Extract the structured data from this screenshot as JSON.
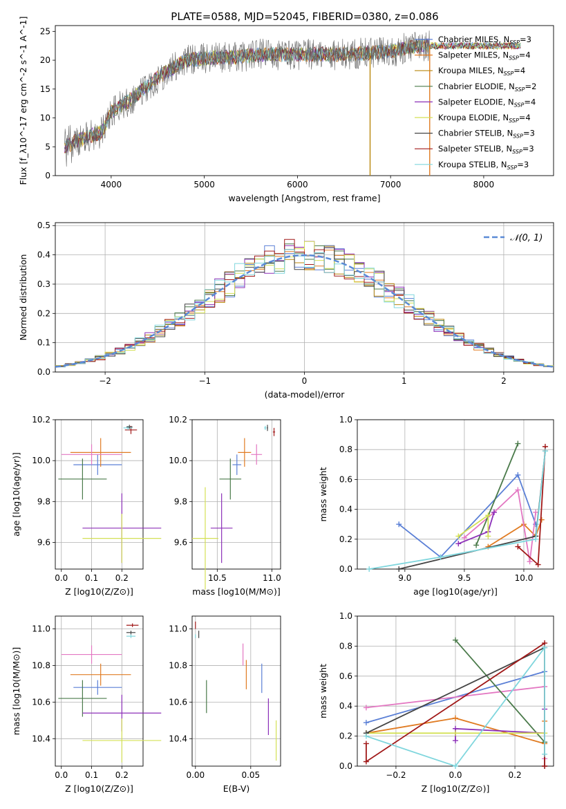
{
  "figure_title": "PLATE=0588, MJD=52045, FIBERID=0380, z=0.086",
  "colors": {
    "Chabrier MILES": "#5a7fd6",
    "Salpeter MILES": "#e07b22",
    "Kroupa MILES": "#b8860b",
    "Chabrier ELODIE": "#4a7a4a",
    "Salpeter ELODIE": "#8b2fb8",
    "Kroupa ELODIE": "#d4e055",
    "Chabrier STELIB": "#444444",
    "Salpeter STELIB": "#a01818",
    "Kroupa STELIB": "#7fd6dd",
    "Salpeter MILES 2": "#e377c2",
    "normal_curve": "#5a8ad6"
  },
  "chart_data": [
    {
      "id": "spectrum",
      "type": "line",
      "title": "PLATE=0588, MJD=52045, FIBERID=0380, z=0.086",
      "xlabel": "wavelength [Angstrom, rest frame]",
      "ylabel": "Flux [f_λ10^-17 erg cm^-2 s^-1 A^-1]",
      "xlim": [
        3400,
        8750
      ],
      "ylim": [
        0,
        26
      ],
      "xticks": [
        "4000",
        "5000",
        "6000",
        "7000",
        "8000"
      ],
      "yticks": [
        "0",
        "5",
        "10",
        "15",
        "20",
        "25"
      ],
      "legend_position": "right",
      "legend": [
        "Chabrier MILES, N_SSP=3",
        "Salpeter MILES, N_SSP=4",
        "Kroupa MILES, N_SSP=4",
        "Chabrier ELODIE, N_SSP=2",
        "Salpeter ELODIE, N_SSP=4",
        "Kroupa ELODIE, N_SSP=4",
        "Chabrier STELIB, N_SSP=3",
        "Salpeter STELIB, N_SSP=3",
        "Kroupa STELIB, N_SSP=3"
      ],
      "data_trend_x": [
        3500,
        3700,
        3900,
        4000,
        4200,
        4500,
        4800,
        5100,
        5300,
        5600,
        6000,
        6500,
        7000,
        7300,
        7400
      ],
      "data_trend_y": [
        5,
        6.5,
        7.5,
        11,
        13,
        17,
        20,
        20.5,
        20.5,
        21,
        21,
        21,
        21.5,
        22.5,
        22.5
      ],
      "model_end_x": 8400,
      "model_end_y": 22.5,
      "drops": [
        {
          "x": 6780,
          "y": 0
        },
        {
          "x": 7420,
          "y": 0
        }
      ]
    },
    {
      "id": "residual_hist",
      "type": "line",
      "xlabel": "(data-model)/error",
      "ylabel": "Normed distribution",
      "xlim": [
        -2.5,
        2.5
      ],
      "ylim": [
        0,
        0.51
      ],
      "xticks": [
        "−2",
        "−1",
        "0",
        "1",
        "2"
      ],
      "yticks": [
        "0.0",
        "0.1",
        "0.2",
        "0.3",
        "0.4",
        "0.5"
      ],
      "legend": [
        "𝒩(0, 1)"
      ],
      "legend_position": "top-right",
      "normal": {
        "mu": 0,
        "sigma": 1
      },
      "bin_width": 0.1
    },
    {
      "id": "age_vs_Z",
      "type": "scatter",
      "xlabel": "Z [log10(Z/Z⊙)]",
      "ylabel": "age  [log10(age/yr)]",
      "xlim": [
        -0.02,
        0.27
      ],
      "ylim": [
        9.47,
        10.2
      ],
      "xticks": [
        "0.0",
        "0.1",
        "0.2"
      ],
      "yticks": [
        "9.6",
        "9.8",
        "10.0",
        "10.2"
      ],
      "points": [
        {
          "model": "Chabrier MILES",
          "x": 0.12,
          "y": 9.98,
          "xerr": 0.08,
          "yerr": 0.05
        },
        {
          "model": "Salpeter MILES",
          "x": 0.13,
          "y": 10.04,
          "xerr": 0.1,
          "yerr": 0.07
        },
        {
          "model": "Salpeter MILES 2",
          "x": 0.1,
          "y": 10.03,
          "xerr": 0.1,
          "yerr": 0.05
        },
        {
          "model": "Chabrier ELODIE",
          "x": 0.07,
          "y": 9.91,
          "xerr": 0.08,
          "yerr": 0.1
        },
        {
          "model": "Salpeter ELODIE",
          "x": 0.2,
          "y": 9.67,
          "xerr": 0.13,
          "yerr": 0.17
        },
        {
          "model": "Kroupa ELODIE",
          "x": 0.2,
          "y": 9.62,
          "xerr": 0.13,
          "yerr": 0.12
        },
        {
          "model": "Salpeter STELIB",
          "x": 0.23,
          "y": 10.15,
          "xerr": 0.02,
          "yerr": 0.02
        },
        {
          "model": "Kroupa STELIB",
          "x": 0.22,
          "y": 10.16,
          "xerr": 0.015,
          "yerr": 0.01
        },
        {
          "model": "Chabrier STELIB",
          "x": 0.225,
          "y": 10.165,
          "xerr": 0.01,
          "yerr": 0.01
        }
      ]
    },
    {
      "id": "age_vs_mass",
      "type": "scatter",
      "xlabel": "mass [log10(M/M⊙)]",
      "ylabel": "",
      "xlim": [
        10.27,
        11.08
      ],
      "ylim": [
        9.47,
        10.2
      ],
      "xticks": [
        "10.5",
        "11.0"
      ],
      "yticks": [
        "9.6",
        "9.8",
        "10.0",
        "10.2"
      ],
      "points": [
        {
          "model": "Chabrier MILES",
          "x": 10.68,
          "y": 9.98,
          "xerr": 0.04,
          "yerr": 0.05
        },
        {
          "model": "Salpeter MILES",
          "x": 10.75,
          "y": 10.04,
          "xerr": 0.06,
          "yerr": 0.07
        },
        {
          "model": "Salpeter MILES 2",
          "x": 10.86,
          "y": 10.03,
          "xerr": 0.05,
          "yerr": 0.05
        },
        {
          "model": "Chabrier ELODIE",
          "x": 10.62,
          "y": 9.91,
          "xerr": 0.1,
          "yerr": 0.1
        },
        {
          "model": "Salpeter ELODIE",
          "x": 10.54,
          "y": 9.67,
          "xerr": 0.1,
          "yerr": 0.17
        },
        {
          "model": "Kroupa ELODIE",
          "x": 10.39,
          "y": 9.62,
          "xerr": 0.12,
          "yerr": 0.25
        },
        {
          "model": "Salpeter STELIB",
          "x": 11.02,
          "y": 10.14,
          "xerr": 0.01,
          "yerr": 0.02
        },
        {
          "model": "Kroupa STELIB",
          "x": 10.94,
          "y": 10.16,
          "xerr": 0.01,
          "yerr": 0.01
        },
        {
          "model": "Chabrier STELIB",
          "x": 10.96,
          "y": 10.16,
          "xerr": 0.005,
          "yerr": 0.015
        }
      ]
    },
    {
      "id": "weight_vs_age",
      "type": "line",
      "xlabel": "age  [log10(age/yr)]",
      "ylabel": "mass weight",
      "xlim": [
        8.6,
        10.25
      ],
      "ylim": [
        0,
        1
      ],
      "xticks": [
        "9.0",
        "9.5",
        "10.0"
      ],
      "yticks": [
        "0.0",
        "0.2",
        "0.4",
        "0.6",
        "0.8",
        "1.0"
      ],
      "series": [
        {
          "model": "Chabrier MILES",
          "x": [
            8.95,
            9.3,
            9.95,
            10.1
          ],
          "y": [
            0.3,
            0.08,
            0.63,
            0.3
          ]
        },
        {
          "model": "Salpeter MILES",
          "x": [
            9.7,
            10.0,
            10.1,
            10.15
          ],
          "y": [
            0.15,
            0.3,
            0.22,
            0.33
          ]
        },
        {
          "model": "Salpeter MILES 2",
          "x": [
            9.5,
            9.75,
            9.95,
            10.05,
            10.1
          ],
          "y": [
            0.21,
            0.38,
            0.53,
            0.05,
            0.38
          ]
        },
        {
          "model": "Chabrier ELODIE",
          "x": [
            9.6,
            9.95
          ],
          "y": [
            0.16,
            0.84
          ]
        },
        {
          "model": "Salpeter ELODIE",
          "x": [
            9.45,
            9.7,
            9.75
          ],
          "y": [
            0.17,
            0.25,
            0.38
          ]
        },
        {
          "model": "Kroupa ELODIE",
          "x": [
            9.45,
            9.7,
            9.7
          ],
          "y": [
            0.22,
            0.36,
            0.22
          ]
        },
        {
          "model": "Chabrier STELIB",
          "x": [
            8.95,
            10.1,
            10.18
          ],
          "y": [
            0.0,
            0.22,
            0.79
          ]
        },
        {
          "model": "Salpeter STELIB",
          "x": [
            9.95,
            10.12,
            10.18
          ],
          "y": [
            0.15,
            0.03,
            0.82
          ]
        },
        {
          "model": "Kroupa STELIB",
          "x": [
            8.7,
            9.3,
            10.1,
            10.18
          ],
          "y": [
            0.0,
            0.08,
            0.2,
            0.79
          ]
        }
      ]
    },
    {
      "id": "mass_vs_Z",
      "type": "scatter",
      "xlabel": "Z [log10(Z/Z⊙)]",
      "ylabel": "mass [log10(M/M⊙)]",
      "xlim": [
        -0.02,
        0.27
      ],
      "ylim": [
        10.25,
        11.07
      ],
      "xticks": [
        "0.0",
        "0.1",
        "0.2"
      ],
      "yticks": [
        "10.4",
        "10.6",
        "10.8",
        "11.0"
      ],
      "points": [
        {
          "model": "Chabrier MILES",
          "x": 0.12,
          "y": 10.68,
          "xerr": 0.08,
          "yerr": 0.04
        },
        {
          "model": "Salpeter MILES",
          "x": 0.13,
          "y": 10.75,
          "xerr": 0.1,
          "yerr": 0.06
        },
        {
          "model": "Salpeter MILES 2",
          "x": 0.1,
          "y": 10.86,
          "xerr": 0.1,
          "yerr": 0.05
        },
        {
          "model": "Chabrier ELODIE",
          "x": 0.07,
          "y": 10.62,
          "xerr": 0.08,
          "yerr": 0.1
        },
        {
          "model": "Salpeter ELODIE",
          "x": 0.2,
          "y": 10.54,
          "xerr": 0.13,
          "yerr": 0.1
        },
        {
          "model": "Kroupa ELODIE",
          "x": 0.2,
          "y": 10.39,
          "xerr": 0.13,
          "yerr": 0.12
        },
        {
          "model": "Salpeter STELIB",
          "x": 0.235,
          "y": 11.02,
          "xerr": 0.02,
          "yerr": 0.01
        },
        {
          "model": "Chabrier STELIB",
          "x": 0.23,
          "y": 10.98,
          "xerr": 0.015,
          "yerr": 0.01
        },
        {
          "model": "Kroupa STELIB",
          "x": 0.23,
          "y": 10.96,
          "xerr": 0.015,
          "yerr": 0.01
        }
      ]
    },
    {
      "id": "mass_vs_ebv",
      "type": "scatter",
      "xlabel": "E(B-V)",
      "ylabel": "",
      "xlim": [
        -0.003,
        0.077
      ],
      "ylim": [
        10.25,
        11.07
      ],
      "xticks": [
        "0.00",
        "0.05"
      ],
      "yticks": [
        "10.4",
        "10.6",
        "10.8",
        "11.0"
      ],
      "points": [
        {
          "model": "Salpeter STELIB",
          "x": 0.0,
          "y": 11.02,
          "xerr": 0,
          "yerr": 0.02
        },
        {
          "model": "Chabrier STELIB",
          "x": 0.003,
          "y": 10.97,
          "xerr": 0,
          "yerr": 0.02
        },
        {
          "model": "Kroupa STELIB",
          "x": 0.0,
          "y": 10.96,
          "xerr": 0,
          "yerr": 0.01
        },
        {
          "model": "Chabrier ELODIE",
          "x": 0.01,
          "y": 10.63,
          "xerr": 0,
          "yerr": 0.09
        },
        {
          "model": "Salpeter MILES 2",
          "x": 0.043,
          "y": 10.86,
          "xerr": 0,
          "yerr": 0.06
        },
        {
          "model": "Salpeter MILES",
          "x": 0.046,
          "y": 10.75,
          "xerr": 0,
          "yerr": 0.08
        },
        {
          "model": "Chabrier MILES",
          "x": 0.06,
          "y": 10.73,
          "xerr": 0,
          "yerr": 0.08
        },
        {
          "model": "Salpeter ELODIE",
          "x": 0.066,
          "y": 10.52,
          "xerr": 0,
          "yerr": 0.1
        },
        {
          "model": "Kroupa ELODIE",
          "x": 0.073,
          "y": 10.39,
          "xerr": 0,
          "yerr": 0.11
        }
      ]
    },
    {
      "id": "weight_vs_Z",
      "type": "line",
      "xlabel": "Z [log10(Z/Z⊙)]",
      "ylabel": "mass weight",
      "xlim": [
        -0.33,
        0.33
      ],
      "ylim": [
        0,
        1
      ],
      "xticks": [
        "−0.2",
        "0.0",
        "0.2"
      ],
      "yticks": [
        "0.0",
        "0.2",
        "0.4",
        "0.6",
        "0.8",
        "1.0"
      ],
      "series": [
        {
          "model": "Chabrier MILES",
          "x": [
            -0.3,
            0.3
          ],
          "y": [
            0.29,
            0.63
          ]
        },
        {
          "model": "Salpeter MILES",
          "x": [
            -0.3,
            0.0,
            0.3,
            0.3
          ],
          "y": [
            0.22,
            0.32,
            0.15,
            0.3
          ]
        },
        {
          "model": "Salpeter MILES 2",
          "x": [
            -0.3,
            0.3,
            0.3
          ],
          "y": [
            0.39,
            0.53,
            0.05
          ]
        },
        {
          "model": "Chabrier ELODIE",
          "x": [
            0.0,
            0.3
          ],
          "y": [
            0.84,
            0.16
          ]
        },
        {
          "model": "Salpeter ELODIE",
          "x": [
            0.0,
            0.0,
            0.3,
            0.3
          ],
          "y": [
            0.17,
            0.25,
            0.22,
            0.38
          ]
        },
        {
          "model": "Kroupa ELODIE",
          "x": [
            -0.3,
            0.0,
            0.3
          ],
          "y": [
            0.22,
            0.22,
            0.22
          ]
        },
        {
          "model": "Chabrier STELIB",
          "x": [
            -0.3,
            0.3,
            0.3
          ],
          "y": [
            0.22,
            0.79,
            0.0
          ]
        },
        {
          "model": "Salpeter STELIB",
          "x": [
            -0.3,
            -0.3,
            0.3,
            0.3
          ],
          "y": [
            0.15,
            0.03,
            0.82,
            0.0
          ]
        },
        {
          "model": "Kroupa STELIB",
          "x": [
            -0.3,
            0.0,
            0.3,
            0.3
          ],
          "y": [
            0.2,
            0.0,
            0.79,
            0.08
          ]
        }
      ]
    }
  ]
}
